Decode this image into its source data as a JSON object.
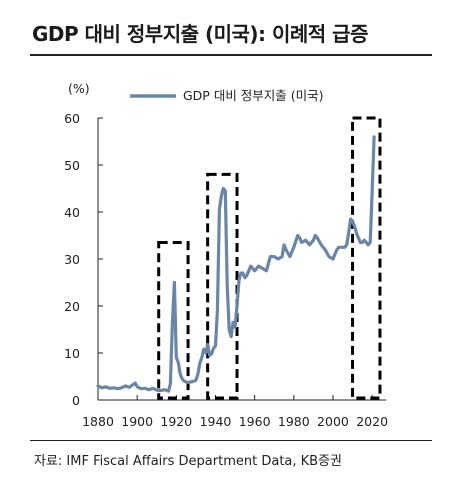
{
  "title": "GDP 대비 정부지출 (미국): 이례적 급증",
  "source": "자료: IMF Fiscal Affairs Department Data, KB증권",
  "chart_data": {
    "type": "line",
    "title": "GDP 대비 정부지출 (미국): 이례적 급증",
    "ylabel": "(%)",
    "xlabel": "",
    "xlim": [
      1880,
      2023
    ],
    "ylim": [
      0,
      60
    ],
    "xticks": [
      1880,
      1900,
      1920,
      1940,
      1960,
      1980,
      2000,
      2020
    ],
    "yticks": [
      0,
      10,
      20,
      30,
      40,
      50,
      60
    ],
    "legend": "top",
    "grid": false,
    "series": [
      {
        "name": "GDP 대비 정부지출 (미국)",
        "color": "#6a85a8",
        "points": [
          [
            1880,
            3.0
          ],
          [
            1882,
            2.6
          ],
          [
            1884,
            2.8
          ],
          [
            1886,
            2.5
          ],
          [
            1888,
            2.6
          ],
          [
            1890,
            2.4
          ],
          [
            1892,
            2.6
          ],
          [
            1894,
            3.0
          ],
          [
            1896,
            2.7
          ],
          [
            1898,
            3.3
          ],
          [
            1899,
            3.6
          ],
          [
            1900,
            2.8
          ],
          [
            1902,
            2.4
          ],
          [
            1904,
            2.5
          ],
          [
            1906,
            2.2
          ],
          [
            1908,
            2.5
          ],
          [
            1910,
            2.1
          ],
          [
            1912,
            2.0
          ],
          [
            1914,
            2.2
          ],
          [
            1916,
            1.9
          ],
          [
            1917,
            3.5
          ],
          [
            1918,
            16.5
          ],
          [
            1919,
            25.0
          ],
          [
            1920,
            9.0
          ],
          [
            1921,
            8.0
          ],
          [
            1922,
            5.5
          ],
          [
            1923,
            4.5
          ],
          [
            1924,
            4.0
          ],
          [
            1926,
            3.7
          ],
          [
            1928,
            3.9
          ],
          [
            1930,
            4.2
          ],
          [
            1931,
            5.5
          ],
          [
            1932,
            7.8
          ],
          [
            1933,
            9.0
          ],
          [
            1934,
            10.8
          ],
          [
            1935,
            10.0
          ],
          [
            1936,
            11.8
          ],
          [
            1937,
            9.5
          ],
          [
            1938,
            9.8
          ],
          [
            1939,
            11.0
          ],
          [
            1940,
            11.5
          ],
          [
            1941,
            19.0
          ],
          [
            1942,
            40.5
          ],
          [
            1943,
            43.5
          ],
          [
            1944,
            45.0
          ],
          [
            1945,
            44.5
          ],
          [
            1946,
            24.5
          ],
          [
            1947,
            15.0
          ],
          [
            1948,
            13.5
          ],
          [
            1949,
            16.5
          ],
          [
            1950,
            15.5
          ],
          [
            1951,
            20.0
          ],
          [
            1952,
            25.5
          ],
          [
            1953,
            27.0
          ],
          [
            1954,
            27.0
          ],
          [
            1955,
            26.0
          ],
          [
            1956,
            26.5
          ],
          [
            1957,
            27.5
          ],
          [
            1958,
            28.5
          ],
          [
            1959,
            28.0
          ],
          [
            1960,
            27.5
          ],
          [
            1962,
            28.5
          ],
          [
            1964,
            28.0
          ],
          [
            1966,
            27.5
          ],
          [
            1968,
            30.5
          ],
          [
            1970,
            30.5
          ],
          [
            1972,
            30.0
          ],
          [
            1974,
            30.5
          ],
          [
            1975,
            33.0
          ],
          [
            1976,
            32.0
          ],
          [
            1978,
            30.5
          ],
          [
            1980,
            32.5
          ],
          [
            1982,
            35.0
          ],
          [
            1983,
            34.5
          ],
          [
            1984,
            33.5
          ],
          [
            1986,
            34.0
          ],
          [
            1988,
            33.0
          ],
          [
            1990,
            34.0
          ],
          [
            1991,
            35.0
          ],
          [
            1992,
            34.5
          ],
          [
            1994,
            33.0
          ],
          [
            1996,
            32.0
          ],
          [
            1998,
            30.5
          ],
          [
            2000,
            30.0
          ],
          [
            2001,
            31.0
          ],
          [
            2002,
            32.0
          ],
          [
            2003,
            32.5
          ],
          [
            2004,
            32.5
          ],
          [
            2006,
            32.5
          ],
          [
            2007,
            33.0
          ],
          [
            2008,
            35.5
          ],
          [
            2009,
            38.5
          ],
          [
            2010,
            38.0
          ],
          [
            2011,
            37.0
          ],
          [
            2012,
            35.5
          ],
          [
            2013,
            34.5
          ],
          [
            2014,
            33.5
          ],
          [
            2015,
            33.5
          ],
          [
            2016,
            34.0
          ],
          [
            2017,
            33.5
          ],
          [
            2018,
            33.0
          ],
          [
            2019,
            33.5
          ],
          [
            2020,
            44.0
          ],
          [
            2021,
            56.0
          ]
        ]
      }
    ],
    "annotations": [
      {
        "type": "dashed-box",
        "x_range": [
          1911,
          1926
        ],
        "y_range": [
          0,
          33.5
        ]
      },
      {
        "type": "dashed-box",
        "x_range": [
          1936,
          1951
        ],
        "y_range": [
          0,
          48
        ]
      },
      {
        "type": "dashed-box",
        "x_range": [
          2010,
          2024
        ],
        "y_range": [
          0,
          60
        ]
      }
    ]
  }
}
